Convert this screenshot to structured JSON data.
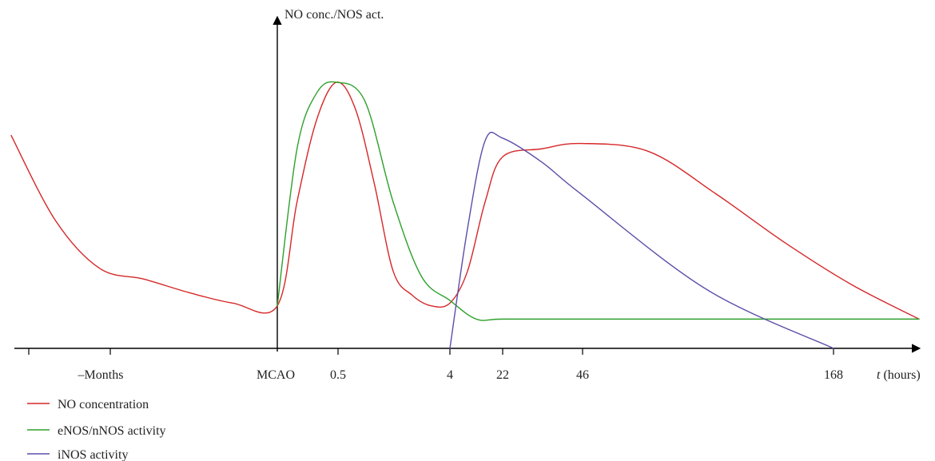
{
  "chart_data": {
    "type": "line",
    "title": "",
    "ylabel": "NO conc./NOS act.",
    "xlabel_var": "t",
    "xlabel_unit": " (hours)",
    "x_tick_labels": [
      "–Months",
      "MCAO",
      "0.5",
      "4",
      "22",
      "46",
      "168"
    ],
    "series": [
      {
        "name": "NO concentration",
        "color": "#d62728",
        "points": [
          [
            "-Months",
            0.8
          ],
          [
            "",
            0.48
          ],
          [
            "",
            0.3
          ],
          [
            "",
            0.26
          ],
          [
            "",
            0.21
          ],
          [
            "",
            0.17
          ],
          [
            "MCAO",
            0.16
          ],
          [
            "",
            0.55
          ],
          [
            "",
            0.86
          ],
          [
            "0.5",
            1.0
          ],
          [
            "",
            0.9
          ],
          [
            "",
            0.62
          ],
          [
            "",
            0.29
          ],
          [
            "",
            0.2
          ],
          [
            "",
            0.16
          ],
          [
            "4",
            0.17
          ],
          [
            "",
            0.29
          ],
          [
            "",
            0.55
          ],
          [
            "22",
            0.72
          ],
          [
            "",
            0.75
          ],
          [
            "46",
            0.77
          ],
          [
            "",
            0.74
          ],
          [
            "",
            0.58
          ],
          [
            "",
            0.4
          ],
          [
            "",
            0.24
          ],
          [
            "168",
            0.11
          ]
        ]
      },
      {
        "name": "eNOS/nNOS activity",
        "color": "#2ca02c",
        "points": [
          [
            "MCAO",
            0.16
          ],
          [
            "",
            0.75
          ],
          [
            "",
            0.96
          ],
          [
            "0.5",
            1.0
          ],
          [
            "",
            0.93
          ],
          [
            "",
            0.55
          ],
          [
            "",
            0.27
          ],
          [
            "4",
            0.18
          ],
          [
            "",
            0.11
          ],
          [
            "22",
            0.11
          ],
          [
            "46",
            0.11
          ],
          [
            "168",
            0.11
          ]
        ]
      },
      {
        "name": "iNOS activity",
        "color": "#5b4ea8",
        "points": [
          [
            "4",
            0.0
          ],
          [
            "",
            0.45
          ],
          [
            "",
            0.78
          ],
          [
            "22",
            0.79
          ],
          [
            "",
            0.7
          ],
          [
            "46",
            0.58
          ],
          [
            "",
            0.22
          ],
          [
            "168",
            0.0
          ]
        ]
      }
    ],
    "grid": false,
    "legend_placement": "bottom-left"
  }
}
